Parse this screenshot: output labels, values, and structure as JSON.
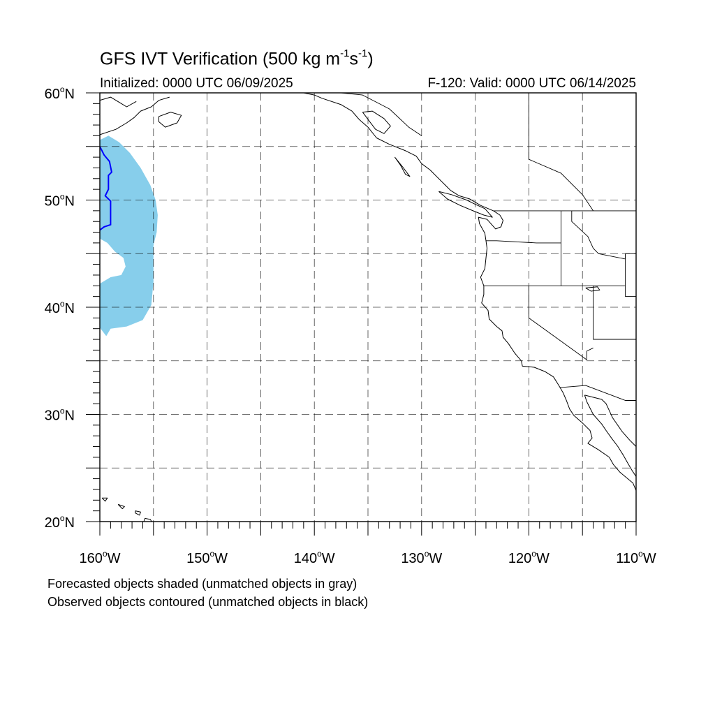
{
  "title": {
    "main": "GFS IVT Verification (500 kg m",
    "sup1": "-1",
    "mid": "s",
    "sup2": "-1",
    "end": ")"
  },
  "subtitle": {
    "initialized": "Initialized: 0000 UTC 06/09/2025",
    "valid": "F-120: Valid: 0000 UTC 06/14/2025"
  },
  "map": {
    "projection": "cylindrical-equidistant",
    "lon_range": [
      -160,
      -110
    ],
    "lat_range": [
      20,
      60
    ],
    "grid": true,
    "grid_style": "dashed",
    "lon_labels": [
      {
        "deg": "160",
        "hemi": "W",
        "lon": -160
      },
      {
        "deg": "150",
        "hemi": "W",
        "lon": -150
      },
      {
        "deg": "140",
        "hemi": "W",
        "lon": -140
      },
      {
        "deg": "130",
        "hemi": "W",
        "lon": -130
      },
      {
        "deg": "120",
        "hemi": "W",
        "lon": -120
      },
      {
        "deg": "110",
        "hemi": "W",
        "lon": -110
      }
    ],
    "lat_labels": [
      {
        "deg": "60",
        "hemi": "N",
        "lat": 60
      },
      {
        "deg": "50",
        "hemi": "N",
        "lat": 50
      },
      {
        "deg": "40",
        "hemi": "N",
        "lat": 40
      },
      {
        "deg": "30",
        "hemi": "N",
        "lat": 30
      },
      {
        "deg": "20",
        "hemi": "N",
        "lat": 20
      }
    ],
    "colors": {
      "forecast_object_fill": "#87ceeb",
      "observed_contour": "#0000ff",
      "coastline": "#000000",
      "grid": "#000000"
    },
    "forecast_object": {
      "outline_lonlat": [
        [
          -160,
          55.6
        ],
        [
          -159.2,
          56.0
        ],
        [
          -158.2,
          55.4
        ],
        [
          -157.2,
          54.4
        ],
        [
          -156.2,
          53.0
        ],
        [
          -155.3,
          51.4
        ],
        [
          -154.8,
          50.0
        ],
        [
          -154.6,
          48.6
        ],
        [
          -154.7,
          47.0
        ],
        [
          -155.0,
          45.8
        ],
        [
          -155.0,
          44.0
        ],
        [
          -155.0,
          42.4
        ],
        [
          -155.2,
          40.2
        ],
        [
          -156.0,
          38.8
        ],
        [
          -157.5,
          38.2
        ],
        [
          -159.0,
          38.0
        ],
        [
          -159.4,
          37.3
        ],
        [
          -160,
          38.1
        ],
        [
          -160,
          42.2
        ],
        [
          -159.0,
          42.8
        ],
        [
          -158.0,
          43.0
        ],
        [
          -157.6,
          43.8
        ],
        [
          -157.8,
          44.6
        ],
        [
          -158.6,
          45.2
        ],
        [
          -159.3,
          46.0
        ],
        [
          -160,
          46.4
        ]
      ]
    },
    "observed_object": {
      "contour_lonlat": [
        [
          -160,
          55.0
        ],
        [
          -159.6,
          54.2
        ],
        [
          -159.1,
          53.6
        ],
        [
          -158.9,
          52.6
        ],
        [
          -159.2,
          52.3
        ],
        [
          -159.2,
          51.0
        ],
        [
          -159.5,
          50.4
        ],
        [
          -159.0,
          49.9
        ],
        [
          -159.0,
          48.6
        ],
        [
          -159.0,
          47.7
        ],
        [
          -159.6,
          47.5
        ],
        [
          -160,
          47.2
        ]
      ]
    }
  },
  "footnotes": {
    "forecast": "Forecasted objects shaded (unmatched objects in gray)",
    "observed": "Observed objects contoured (unmatched objects in black)"
  }
}
